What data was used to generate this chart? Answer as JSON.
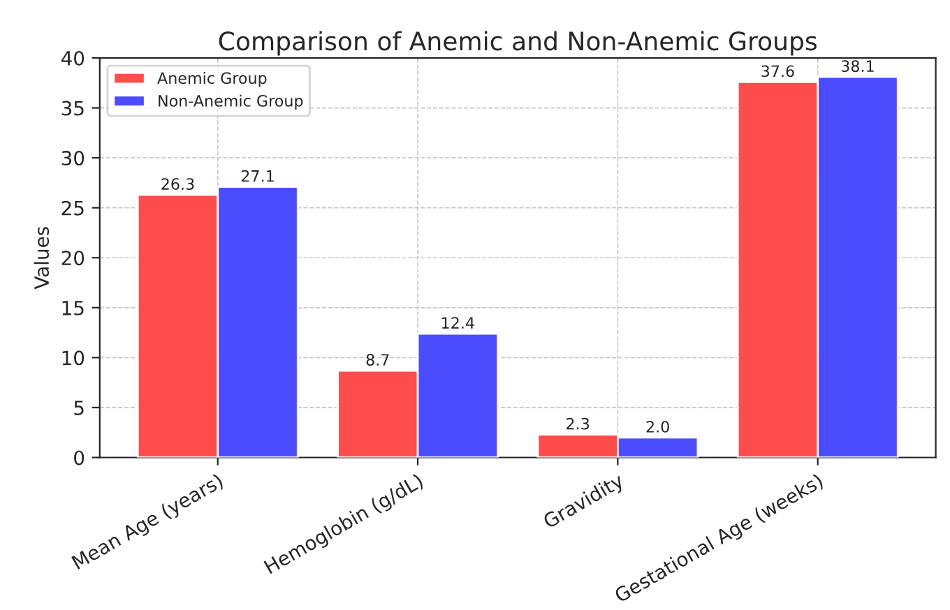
{
  "chart_data": {
    "type": "bar",
    "title": "Comparison of Anemic and Non-Anemic Groups",
    "ylabel": "Values",
    "categories": [
      "Mean Age (years)",
      "Hemoglobin (g/dL)",
      "Gravidity",
      "Gestational Age (weeks)"
    ],
    "series": [
      {
        "name": "Anemic Group",
        "color": "#ff4c4c",
        "values": [
          26.3,
          8.7,
          2.3,
          37.6
        ],
        "value_labels": [
          "26.3",
          "8.7",
          "2.3",
          "37.6"
        ]
      },
      {
        "name": "Non-Anemic Group",
        "color": "#4c4cff",
        "values": [
          27.1,
          12.4,
          2.0,
          38.1
        ],
        "value_labels": [
          "27.1",
          "12.4",
          "2.0",
          "38.1"
        ]
      }
    ],
    "ylim": [
      0,
      40
    ],
    "yticks": [
      0,
      5,
      10,
      15,
      20,
      25,
      30,
      35,
      40
    ],
    "grid": true,
    "legend": "top left"
  }
}
